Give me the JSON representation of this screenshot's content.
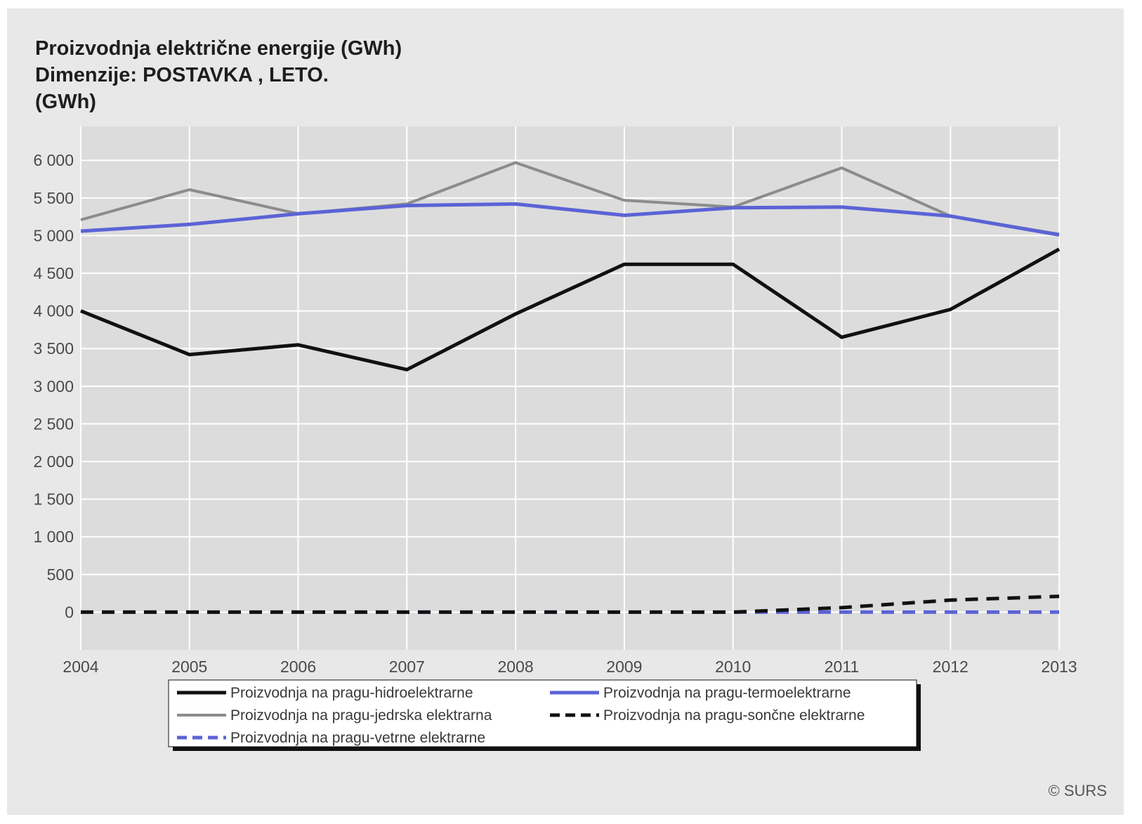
{
  "chart_data": {
    "type": "line",
    "title": "Proizvodnja električne energije (GWh)",
    "subtitle": "Dimenzije: POSTAVKA , LETO.",
    "unit_label": "(GWh)",
    "x": [
      "2004",
      "2005",
      "2006",
      "2007",
      "2008",
      "2009",
      "2010",
      "2011",
      "2012",
      "2013"
    ],
    "yticks": [
      {
        "value": 0,
        "label": "0"
      },
      {
        "value": 500,
        "label": "500"
      },
      {
        "value": 1000,
        "label": "1 000"
      },
      {
        "value": 1500,
        "label": "1 500"
      },
      {
        "value": 2000,
        "label": "2 000"
      },
      {
        "value": 2500,
        "label": "2 500"
      },
      {
        "value": 3000,
        "label": "3 000"
      },
      {
        "value": 3500,
        "label": "3 500"
      },
      {
        "value": 4000,
        "label": "4 000"
      },
      {
        "value": 4500,
        "label": "4 500"
      },
      {
        "value": 5000,
        "label": "5 000"
      },
      {
        "value": 5500,
        "label": "5 500"
      },
      {
        "value": 6000,
        "label": "6 000"
      }
    ],
    "ylim": [
      -500,
      6450
    ],
    "grid": true,
    "legend_position": "bottom",
    "series": [
      {
        "name": "Proizvodnja na pragu-hidroelektrarne",
        "color": "#111111",
        "dash": "solid",
        "values": [
          4000,
          3420,
          3550,
          3220,
          3960,
          4620,
          4620,
          3650,
          4020,
          4820
        ]
      },
      {
        "name": "Proizvodnja na pragu-termoelektrarne",
        "color": "#5b63d6",
        "dash": "solid",
        "values": [
          5060,
          5150,
          5290,
          5400,
          5420,
          5270,
          5370,
          5380,
          5260,
          5010
        ]
      },
      {
        "name": "Proizvodnja na pragu-jedrska elektrarna",
        "color": "#8c8c8c",
        "dash": "solid",
        "values": [
          5210,
          5610,
          5290,
          5420,
          5970,
          5470,
          5380,
          5900,
          5260,
          5020
        ]
      },
      {
        "name": "Proizvodnja na pragu-sončne elektrarne",
        "color": "#111111",
        "dash": "dashed",
        "values": [
          0,
          0,
          0,
          0,
          0,
          0,
          0,
          60,
          160,
          210
        ]
      },
      {
        "name": "Proizvodnja na pragu-vetrne elektrarne",
        "color": "#5b63d6",
        "dash": "dashed",
        "values": [
          0,
          0,
          0,
          0,
          0,
          0,
          0,
          0,
          0,
          0
        ]
      }
    ]
  },
  "source": "© SURS"
}
